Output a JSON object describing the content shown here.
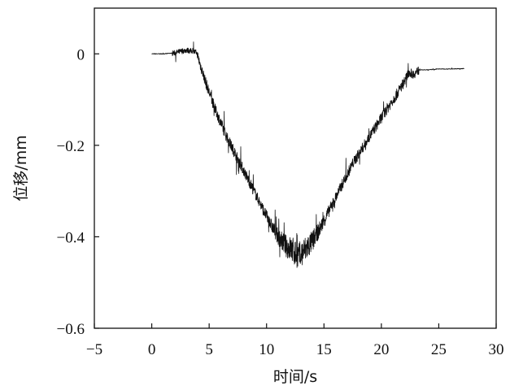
{
  "chart_data": {
    "type": "line",
    "title": "",
    "xlabel": "时间/s",
    "ylabel": "位移/mm",
    "xlim": [
      -5,
      30
    ],
    "ylim": [
      -0.6,
      0.1
    ],
    "x_ticks": [
      -5,
      0,
      5,
      10,
      15,
      20,
      25,
      30
    ],
    "x_tick_labels": [
      "−5",
      "0",
      "5",
      "10",
      "15",
      "20",
      "25",
      "30"
    ],
    "y_ticks": [
      0,
      -0.2,
      -0.4,
      -0.6
    ],
    "y_tick_labels": [
      "0",
      "−0.2",
      "−0.4",
      "−0.6"
    ],
    "grid": false,
    "legend": "none",
    "line_color": "#111111",
    "series": [
      {
        "x": [
          0.0,
          1.0,
          2.0,
          2.5,
          3.0,
          3.5,
          3.9,
          4.3,
          4.8,
          5.5,
          6.5,
          7.5,
          8.5,
          9.5,
          10.3,
          11.0,
          11.7,
          12.3,
          12.8,
          13.3,
          14.0,
          14.7,
          15.5,
          16.5,
          17.5,
          18.5,
          19.5,
          20.5,
          21.3,
          22.0,
          22.4,
          22.8,
          23.3,
          24.0,
          25.0,
          26.0,
          27.2
        ],
        "y": [
          0.0,
          0.0,
          0.002,
          0.005,
          0.008,
          0.006,
          0.003,
          -0.03,
          -0.07,
          -0.12,
          -0.18,
          -0.23,
          -0.28,
          -0.33,
          -0.37,
          -0.4,
          -0.42,
          -0.43,
          -0.445,
          -0.43,
          -0.41,
          -0.38,
          -0.34,
          -0.29,
          -0.24,
          -0.2,
          -0.16,
          -0.12,
          -0.09,
          -0.06,
          -0.04,
          -0.045,
          -0.035,
          -0.035,
          -0.033,
          -0.033,
          -0.032
        ]
      }
    ]
  }
}
